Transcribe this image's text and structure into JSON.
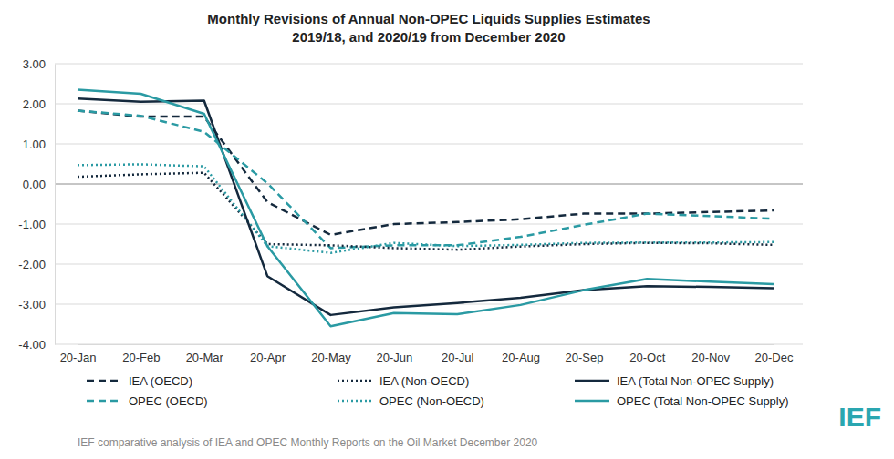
{
  "chart_data": {
    "type": "line",
    "title": "Monthly Revisions of Annual Non-OPEC Liquids Supplies Estimates",
    "subtitle": "2019/18, and 2020/19 from December 2020",
    "note": "IEF comparative analysis of IEA and OPEC Monthly Reports on the Oil Market December 2020",
    "logo": "IEF",
    "categories": [
      "20-Jan",
      "20-Feb",
      "20-Mar",
      "20-Apr",
      "20-May",
      "20-Jun",
      "20-Jul",
      "20-Aug",
      "20-Sep",
      "20-Oct",
      "20-Nov",
      "20-Dec"
    ],
    "series": [
      {
        "name": "IEA (OECD)",
        "color": "#14293d",
        "line_style": "dashed",
        "values": [
          1.83,
          1.68,
          1.68,
          -0.45,
          -1.27,
          -1.0,
          -0.95,
          -0.88,
          -0.74,
          -0.74,
          -0.7,
          -0.66
        ]
      },
      {
        "name": "OPEC (OECD)",
        "color": "#2a9aa3",
        "line_style": "dashed",
        "values": [
          1.83,
          1.7,
          1.3,
          0.02,
          -1.6,
          -1.53,
          -1.53,
          -1.32,
          -1.02,
          -0.74,
          -0.8,
          -0.87
        ]
      },
      {
        "name": "IEA (Non-OECD)",
        "color": "#14293d",
        "line_style": "dotted",
        "values": [
          0.18,
          0.24,
          0.28,
          -1.5,
          -1.53,
          -1.6,
          -1.64,
          -1.56,
          -1.5,
          -1.47,
          -1.48,
          -1.52
        ]
      },
      {
        "name": "OPEC (Non-OECD)",
        "color": "#2a9aa3",
        "line_style": "dotted",
        "values": [
          0.47,
          0.49,
          0.44,
          -1.55,
          -1.72,
          -1.47,
          -1.55,
          -1.52,
          -1.47,
          -1.46,
          -1.46,
          -1.45
        ]
      },
      {
        "name": "IEA (Total Non-OPEC Supply)",
        "color": "#14293d",
        "line_style": "solid",
        "values": [
          2.13,
          2.05,
          2.08,
          -2.3,
          -3.27,
          -3.08,
          -2.97,
          -2.84,
          -2.65,
          -2.55,
          -2.57,
          -2.6
        ]
      },
      {
        "name": "OPEC (Total Non-OPEC Supply)",
        "color": "#2a9aa3",
        "line_style": "solid",
        "values": [
          2.35,
          2.25,
          1.75,
          -1.55,
          -3.55,
          -3.22,
          -3.25,
          -3.02,
          -2.65,
          -2.37,
          -2.44,
          -2.5
        ]
      }
    ],
    "ylim": [
      -4,
      3
    ],
    "yticks": [
      {
        "value": -4,
        "label": "-4.00"
      },
      {
        "value": -3,
        "label": "-3.00"
      },
      {
        "value": -2,
        "label": "-2.00"
      },
      {
        "value": -1,
        "label": "-1.00"
      },
      {
        "value": 0,
        "label": "0.00"
      },
      {
        "value": 1,
        "label": "1.00"
      },
      {
        "value": 2,
        "label": "2.00"
      },
      {
        "value": 3,
        "label": "3.00"
      }
    ],
    "grid": true,
    "legend": "bottom"
  }
}
